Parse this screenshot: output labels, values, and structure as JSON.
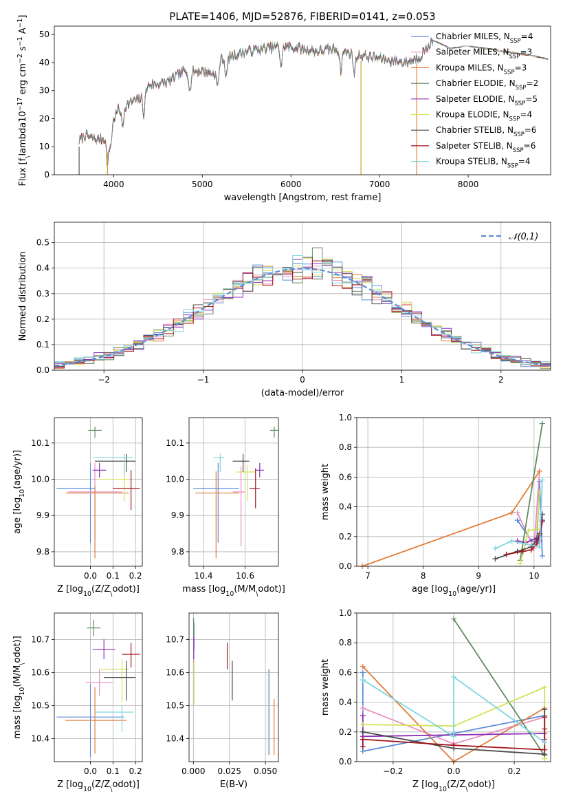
{
  "figure": {
    "title": "PLATE=1406, MJD=52876, FIBERID=0141, z=0.053"
  },
  "models": [
    {
      "label": "Chabrier MILES, N$_{SSP}$=4",
      "base": "Chabrier MILES, N",
      "sub": "SSP",
      "tail": "=4",
      "color": "#5b8bd8"
    },
    {
      "label": "Salpeter MILES, N$_{SSP}$=3",
      "base": "Salpeter MILES, N",
      "sub": "SSP",
      "tail": "=3",
      "color": "#e88fc0"
    },
    {
      "label": "Kroupa MILES, N$_{SSP}$=3",
      "base": "Kroupa MILES, N",
      "sub": "SSP",
      "tail": "=3",
      "color": "#e07b39"
    },
    {
      "label": "Chabrier ELODIE, N$_{SSP}$=2",
      "base": "Chabrier ELODIE, N",
      "sub": "SSP",
      "tail": "=2",
      "color": "#5e8c61"
    },
    {
      "label": "Salpeter ELODIE, N$_{SSP}$=5",
      "base": "Salpeter ELODIE, N",
      "sub": "SSP",
      "tail": "=5",
      "color": "#8e2fb8"
    },
    {
      "label": "Kroupa ELODIE, N$_{SSP}$=4",
      "base": "Kroupa ELODIE, N",
      "sub": "SSP",
      "tail": "=4",
      "color": "#d4e157"
    },
    {
      "label": "Chabrier STELIB, N$_{SSP}$=6",
      "base": "Chabrier STELIB, N",
      "sub": "SSP",
      "tail": "=6",
      "color": "#4a4a4a"
    },
    {
      "label": "Salpeter STELIB, N$_{SSP}$=6",
      "base": "Salpeter STELIB, N",
      "sub": "SSP",
      "tail": "=6",
      "color": "#a3161b"
    },
    {
      "label": "Kroupa STELIB, N$_{SSP}$=4",
      "base": "Kroupa STELIB, N",
      "sub": "SSP",
      "tail": "=4",
      "color": "#7ed6df"
    }
  ],
  "chart_data": [
    {
      "id": "spectrum",
      "type": "line",
      "xlabel": "wavelength [Angstrom, rest frame]",
      "ylabel": "Flux [f$_\\lambda$10$^{-17}$ erg cm$^{-2}$ s$^{-1}$ A$^{-1}$]",
      "xlim": [
        3330,
        8930
      ],
      "ylim": [
        0,
        53
      ],
      "xticks": [
        4000,
        5000,
        6000,
        7000,
        8000
      ],
      "yticks": [
        0,
        10,
        20,
        30,
        40,
        50
      ],
      "grid": false,
      "legend": "right",
      "continuum": {
        "x": [
          3610,
          3680,
          3800,
          3900,
          3930,
          3970,
          4050,
          4200,
          4300,
          4400,
          4600,
          4800,
          5000,
          5150,
          5200,
          5300,
          5500,
          5700,
          5900,
          6100,
          6300,
          6500,
          6700,
          6900,
          7100,
          7300,
          7450,
          7600,
          7800,
          8000,
          8200,
          8400,
          8600,
          8800,
          8930
        ],
        "y": [
          12,
          14,
          12.5,
          13,
          10,
          18,
          23,
          26,
          27,
          32,
          33,
          37,
          37,
          36,
          41,
          42,
          44,
          45,
          46,
          45,
          44,
          45,
          43,
          42,
          41,
          40,
          42,
          48,
          45,
          46,
          45,
          44,
          43,
          42,
          41
        ]
      },
      "dips_x": [
        3933,
        3968,
        4101,
        4340,
        4861,
        5175,
        5270,
        5890,
        6563,
        6716
      ]
    },
    {
      "id": "residuals",
      "type": "step-histogram",
      "xlabel": "(data-model)/error",
      "ylabel": "Normed distribution",
      "xlim": [
        -2.5,
        2.5
      ],
      "ylim": [
        0,
        0.58
      ],
      "xticks": [
        -2,
        -1,
        0,
        1,
        2
      ],
      "yticks": [
        0,
        0.1,
        0.2,
        0.3,
        0.4,
        0.5
      ],
      "grid": true,
      "legend": "top-right",
      "reference": {
        "label": "$\\mathcal{N}(0,1)$",
        "mu": 0,
        "sigma": 1
      },
      "bin_width": 0.1,
      "bin_start": -2.5,
      "approx_series_peak": [
        0.55,
        0.47,
        0.49,
        0.48,
        0.47,
        0.48,
        0.47,
        0.47,
        0.47
      ]
    },
    {
      "id": "Z-age",
      "type": "errorbar",
      "xlabel": "Z [log$_{10}$($Z/Z_\\odot$)]",
      "ylabel": "age  [log$_{10}$($age/yr$)]",
      "xlim": [
        -0.16,
        0.23
      ],
      "ylim": [
        9.76,
        10.17
      ],
      "xticks": [
        0.0,
        0.1,
        0.2
      ],
      "yticks": [
        9.8,
        9.9,
        10.0,
        10.1
      ],
      "grid": true,
      "points": [
        {
          "model": 0,
          "x": 0.0,
          "y": 9.975,
          "xerr": [
            0.15,
            0.02
          ],
          "yerr": [
            0.15,
            0.07
          ]
        },
        {
          "model": 1,
          "x": 0.02,
          "y": 9.965,
          "xerr": [
            0.12,
            0.12
          ],
          "yerr": [
            0.13,
            0.08
          ]
        },
        {
          "model": 2,
          "x": 0.02,
          "y": 9.962,
          "xerr": [
            0.13,
            0.15
          ],
          "yerr": [
            0.18,
            0.02
          ]
        },
        {
          "model": 3,
          "x": 0.02,
          "y": 10.135,
          "xerr": [
            0.03,
            0.03
          ],
          "yerr": [
            0.02,
            0.01
          ]
        },
        {
          "model": 4,
          "x": 0.04,
          "y": 10.025,
          "xerr": [
            0.03,
            0.03
          ],
          "yerr": [
            0.02,
            0.02
          ]
        },
        {
          "model": 5,
          "x": 0.15,
          "y": 10.0,
          "xerr": [
            0.12,
            0.02
          ],
          "yerr": [
            0.06,
            0.04
          ]
        },
        {
          "model": 6,
          "x": 0.16,
          "y": 10.05,
          "xerr": [
            0.14,
            0.04
          ],
          "yerr": [
            0.03,
            0.02
          ]
        },
        {
          "model": 7,
          "x": 0.18,
          "y": 9.975,
          "xerr": [
            0.08,
            0.04
          ],
          "yerr": [
            0.06,
            0.05
          ]
        },
        {
          "model": 8,
          "x": 0.15,
          "y": 10.06,
          "xerr": [
            0.14,
            0.04
          ],
          "yerr": [
            0.05,
            0.01
          ]
        }
      ]
    },
    {
      "id": "mass-age",
      "type": "errorbar",
      "xlabel": "mass [log$_{10}$($M/M_\\odot$)]",
      "ylabel": "",
      "xlim": [
        10.33,
        10.76
      ],
      "ylim": [
        9.76,
        10.17
      ],
      "xticks": [
        10.4,
        10.6
      ],
      "yticks": [
        9.8,
        9.9,
        10.0,
        10.1
      ],
      "grid": true,
      "points": [
        {
          "model": 0,
          "x": 10.47,
          "y": 9.975,
          "xerr": [
            0.12,
            0.1
          ],
          "yerr": [
            0.15,
            0.07
          ]
        },
        {
          "model": 1,
          "x": 10.58,
          "y": 9.965,
          "xerr": [
            0.04,
            0.02
          ],
          "yerr": [
            0.15,
            0.07
          ]
        },
        {
          "model": 2,
          "x": 10.46,
          "y": 9.962,
          "xerr": [
            0.1,
            0.11
          ],
          "yerr": [
            0.18,
            0.06
          ]
        },
        {
          "model": 3,
          "x": 10.74,
          "y": 10.135,
          "xerr": [
            0.02,
            0.02
          ],
          "yerr": [
            0.02,
            0.01
          ]
        },
        {
          "model": 4,
          "x": 10.67,
          "y": 10.025,
          "xerr": [
            0.02,
            0.02
          ],
          "yerr": [
            0.02,
            0.02
          ]
        },
        {
          "model": 5,
          "x": 10.61,
          "y": 10.02,
          "xerr": [
            0.05,
            0.04
          ],
          "yerr": [
            0.08,
            0.02
          ]
        },
        {
          "model": 6,
          "x": 10.59,
          "y": 10.05,
          "xerr": [
            0.05,
            0.03
          ],
          "yerr": [
            0.03,
            0.02
          ]
        },
        {
          "model": 7,
          "x": 10.65,
          "y": 9.975,
          "xerr": [
            0.03,
            0.02
          ],
          "yerr": [
            0.055,
            0.055
          ]
        },
        {
          "model": 8,
          "x": 10.48,
          "y": 10.06,
          "xerr": [
            0.03,
            0.02
          ],
          "yerr": [
            0.04,
            0.01
          ]
        }
      ]
    },
    {
      "id": "age-weight",
      "type": "line",
      "xlabel": "age  [log$_{10}$($age/yr$)]",
      "ylabel": "mass weight",
      "xlim": [
        6.8,
        10.3
      ],
      "ylim": [
        0,
        1.0
      ],
      "xticks": [
        7,
        8,
        9,
        10
      ],
      "yticks": [
        0.0,
        0.2,
        0.4,
        0.6,
        0.8,
        1.0
      ],
      "grid": true,
      "series": [
        {
          "model": 0,
          "x": [
            9.7,
            9.95,
            10.05,
            10.1,
            10.15
          ],
          "y": [
            0.31,
            0.17,
            0.16,
            0.57,
            0.07
          ]
        },
        {
          "model": 1,
          "x": [
            9.7,
            10.0,
            10.1
          ],
          "y": [
            0.36,
            0.12,
            0.64
          ]
        },
        {
          "model": 2,
          "x": [
            6.9,
            9.6,
            10.1
          ],
          "y": [
            0.0,
            0.36,
            0.64
          ]
        },
        {
          "model": 3,
          "x": [
            9.75,
            10.15
          ],
          "y": [
            0.04,
            0.96
          ]
        },
        {
          "model": 4,
          "x": [
            9.7,
            9.85,
            10.05,
            10.1,
            10.15
          ],
          "y": [
            0.17,
            0.16,
            0.19,
            0.17,
            0.31
          ]
        },
        {
          "model": 5,
          "x": [
            9.75,
            9.9,
            10.05,
            10.1
          ],
          "y": [
            0.02,
            0.24,
            0.25,
            0.5
          ]
        },
        {
          "model": 6,
          "x": [
            9.3,
            9.7,
            9.95,
            10.05,
            10.1,
            10.15
          ],
          "y": [
            0.05,
            0.1,
            0.13,
            0.18,
            0.21,
            0.35
          ]
        },
        {
          "model": 7,
          "x": [
            9.5,
            9.8,
            9.95,
            10.05,
            10.1,
            10.15
          ],
          "y": [
            0.08,
            0.1,
            0.11,
            0.15,
            0.22,
            0.3
          ]
        },
        {
          "model": 8,
          "x": [
            9.3,
            9.6,
            10.1,
            10.15
          ],
          "y": [
            0.12,
            0.17,
            0.13,
            0.58
          ]
        }
      ]
    },
    {
      "id": "Z-mass",
      "type": "errorbar",
      "xlabel": "Z [log$_{10}$($Z/Z_\\odot$)]",
      "ylabel": "mass [log$_{10}$($M/M_\\odot$)]",
      "xlim": [
        -0.16,
        0.23
      ],
      "ylim": [
        10.33,
        10.78
      ],
      "xticks": [
        0.0,
        0.1,
        0.2
      ],
      "yticks": [
        10.4,
        10.5,
        10.6,
        10.7
      ],
      "grid": true,
      "points": [
        {
          "model": 0,
          "x": 0.0,
          "y": 10.465,
          "xerr": [
            0.15,
            0.15
          ],
          "yerr": [
            0.12,
            0.1
          ]
        },
        {
          "model": 1,
          "x": 0.04,
          "y": 10.57,
          "xerr": [
            0.06,
            0.06
          ],
          "yerr": [
            0.04,
            0.04
          ]
        },
        {
          "model": 2,
          "x": 0.02,
          "y": 10.455,
          "xerr": [
            0.13,
            0.14
          ],
          "yerr": [
            0.1,
            0.1
          ]
        },
        {
          "model": 3,
          "x": 0.015,
          "y": 10.735,
          "xerr": [
            0.03,
            0.03
          ],
          "yerr": [
            0.025,
            0.025
          ]
        },
        {
          "model": 4,
          "x": 0.06,
          "y": 10.67,
          "xerr": [
            0.05,
            0.05
          ],
          "yerr": [
            0.03,
            0.03
          ]
        },
        {
          "model": 5,
          "x": 0.14,
          "y": 10.61,
          "xerr": [
            0.1,
            0.03
          ],
          "yerr": [
            0.1,
            0.03
          ]
        },
        {
          "model": 6,
          "x": 0.16,
          "y": 10.585,
          "xerr": [
            0.1,
            0.04
          ],
          "yerr": [
            0.07,
            0.05
          ]
        },
        {
          "model": 7,
          "x": 0.18,
          "y": 10.655,
          "xerr": [
            0.04,
            0.04
          ],
          "yerr": [
            0.04,
            0.035
          ]
        },
        {
          "model": 8,
          "x": 0.14,
          "y": 10.48,
          "xerr": [
            0.12,
            0.05
          ],
          "yerr": [
            0.06,
            0.02
          ]
        }
      ]
    },
    {
      "id": "EBV-mass",
      "type": "errorbar",
      "xlabel": "E(B-V)",
      "ylabel": "",
      "xlim": [
        -0.003,
        0.059
      ],
      "ylim": [
        10.33,
        10.78
      ],
      "xticks": [
        0.0,
        0.025,
        0.05
      ],
      "xticklabels": [
        "0.000",
        "0.025",
        "0.050"
      ],
      "yticks": [
        10.4,
        10.5,
        10.6,
        10.7
      ],
      "grid": true,
      "points": [
        {
          "model": 0,
          "x": 0.0005,
          "y": 10.72,
          "xerr": [
            0,
            0
          ],
          "yerr": [
            0.05,
            0.03
          ]
        },
        {
          "model": 1,
          "x": 0.053,
          "y": 10.47,
          "xerr": [
            0,
            0
          ],
          "yerr": [
            0.12,
            0.14
          ]
        },
        {
          "model": 2,
          "x": 0.056,
          "y": 10.44,
          "xerr": [
            0,
            0
          ],
          "yerr": [
            0.09,
            0.08
          ]
        },
        {
          "model": 3,
          "x": 0.0002,
          "y": 10.74,
          "xerr": [
            0,
            0
          ],
          "yerr": [
            0.03,
            0.025
          ]
        },
        {
          "model": 4,
          "x": 0.0003,
          "y": 10.67,
          "xerr": [
            0,
            0
          ],
          "yerr": [
            0.04,
            0.04
          ]
        },
        {
          "model": 5,
          "x": 0.0004,
          "y": 10.56,
          "xerr": [
            0,
            0
          ],
          "yerr": [
            0.06,
            0.08
          ]
        },
        {
          "model": 6,
          "x": 0.027,
          "y": 10.585,
          "xerr": [
            0,
            0
          ],
          "yerr": [
            0.07,
            0.05
          ]
        },
        {
          "model": 7,
          "x": 0.0235,
          "y": 10.65,
          "xerr": [
            0,
            0
          ],
          "yerr": [
            0.04,
            0.04
          ]
        },
        {
          "model": 8,
          "x": 0.052,
          "y": 10.48,
          "xerr": [
            0,
            0
          ],
          "yerr": [
            0.13,
            0.13
          ]
        }
      ]
    },
    {
      "id": "Z-weight",
      "type": "line",
      "xlabel": "Z [log$_{10}$($Z/Z_\\odot$)]",
      "ylabel": "mass weight",
      "xlim": [
        -0.32,
        0.32
      ],
      "ylim": [
        0,
        1.0
      ],
      "xticks": [
        -0.2,
        0.0,
        0.2
      ],
      "xticklabels": [
        "−0.2",
        "0.0",
        "0.2"
      ],
      "yticks": [
        0.0,
        0.2,
        0.4,
        0.6,
        0.8,
        1.0
      ],
      "grid": true,
      "series": [
        {
          "model": 0,
          "x": [
            -0.3,
            -0.3,
            0.0,
            0.3
          ],
          "y": [
            0.6,
            0.07,
            0.19,
            0.31
          ]
        },
        {
          "model": 1,
          "x": [
            -0.3,
            0.0,
            0.3
          ],
          "y": [
            0.36,
            0.12,
            0.3
          ]
        },
        {
          "model": 2,
          "x": [
            -0.3,
            0.0,
            0.3
          ],
          "y": [
            0.64,
            0.0,
            0.36
          ]
        },
        {
          "model": 3,
          "x": [
            0.0,
            0.3
          ],
          "y": [
            0.96,
            0.04
          ]
        },
        {
          "model": 4,
          "x": [
            -0.3,
            -0.3,
            0.3,
            0.3
          ],
          "y": [
            0.31,
            0.17,
            0.19,
            0.15
          ]
        },
        {
          "model": 5,
          "x": [
            -0.3,
            0.0,
            0.3,
            0.3
          ],
          "y": [
            0.25,
            0.24,
            0.5,
            0.02
          ]
        },
        {
          "model": 6,
          "x": [
            -0.3,
            0.0,
            0.3,
            0.3
          ],
          "y": [
            0.2,
            0.09,
            0.05,
            0.35
          ]
        },
        {
          "model": 7,
          "x": [
            -0.3,
            -0.3,
            0.0,
            0.3,
            0.3,
            0.3
          ],
          "y": [
            0.1,
            0.15,
            0.11,
            0.08,
            0.22,
            0.3
          ]
        },
        {
          "model": 8,
          "x": [
            -0.3,
            0.0,
            0.0,
            0.3
          ],
          "y": [
            0.55,
            0.17,
            0.57,
            0.13
          ]
        }
      ]
    }
  ]
}
